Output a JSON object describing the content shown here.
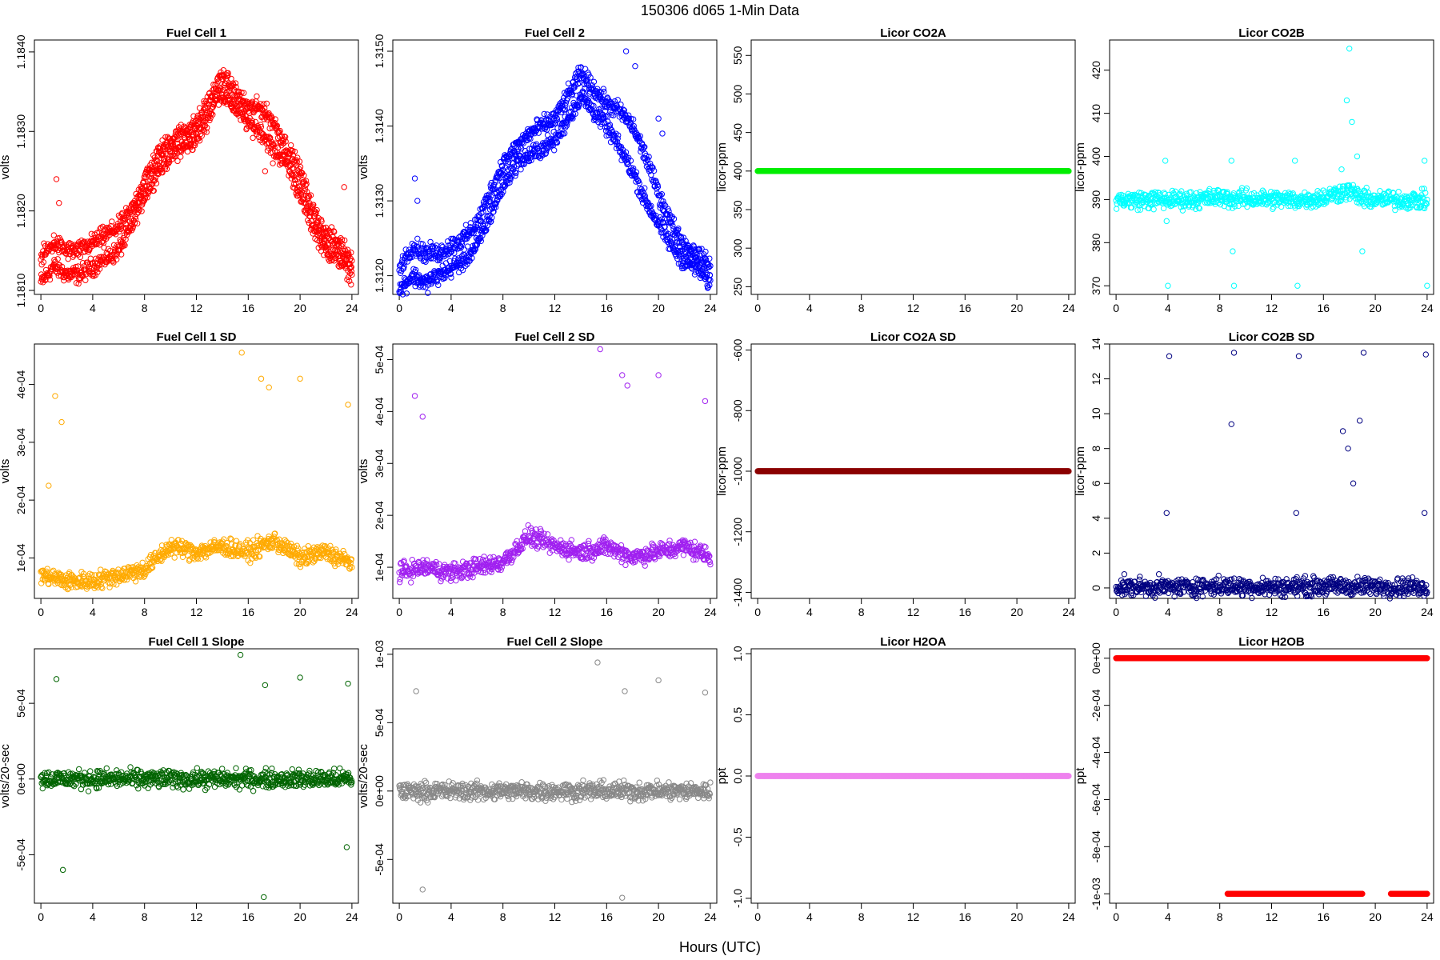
{
  "figure": {
    "title": "150306   d065   1-Min Data",
    "xlabel": "Hours (UTC)"
  },
  "chart_data": [
    {
      "type": "scatter",
      "title": "Fuel Cell 1",
      "ylabel": "volts",
      "color": "#ff0000",
      "xlim": [
        -0.5,
        24.5
      ],
      "ylim": [
        1.18095,
        1.18415
      ],
      "xticks": [
        0,
        4,
        8,
        12,
        16,
        20,
        24
      ],
      "yticks": [
        1.181,
        1.182,
        1.183,
        1.184
      ],
      "ytick_labels": [
        "1.1810",
        "1.1820",
        "1.1830",
        "1.1840"
      ],
      "series": [
        {
          "x": [
            0,
            1,
            2,
            3,
            4,
            5,
            6,
            7,
            8,
            9,
            10,
            11,
            12,
            13,
            13.8,
            15,
            16,
            17,
            17.8,
            19,
            20,
            21,
            22,
            23,
            24
          ],
          "y": [
            1.1811,
            1.1813,
            1.1812,
            1.1812,
            1.1813,
            1.1814,
            1.1815,
            1.1818,
            1.1822,
            1.1825,
            1.1827,
            1.1828,
            1.1829,
            1.1832,
            1.1835,
            1.1833,
            1.1831,
            1.183,
            1.1828,
            1.1826,
            1.1822,
            1.1818,
            1.1815,
            1.1814,
            1.1812
          ]
        },
        {
          "x": [
            0,
            1,
            2,
            3,
            4,
            5,
            6,
            7,
            8,
            9,
            10,
            11,
            12,
            13,
            14,
            15,
            16,
            17,
            18,
            19,
            20,
            21,
            22,
            23,
            24
          ],
          "y": [
            1.1814,
            1.1816,
            1.1815,
            1.1815,
            1.1816,
            1.1817,
            1.1818,
            1.182,
            1.1824,
            1.1827,
            1.1829,
            1.183,
            1.1831,
            1.1834,
            1.1837,
            1.1835,
            1.1833,
            1.1833,
            1.1831,
            1.1828,
            1.1825,
            1.182,
            1.1817,
            1.1816,
            1.1814
          ]
        },
        {
          "x": [
            1.2,
            1.4,
            17.3,
            17.9,
            19.8,
            20.1,
            23.4
          ],
          "y": [
            1.1824,
            1.1821,
            1.1825,
            1.1826,
            1.1824,
            1.1822,
            1.1823
          ]
        }
      ]
    },
    {
      "type": "scatter",
      "title": "Fuel Cell 2",
      "ylabel": "volts",
      "color": "#0000ff",
      "xlim": [
        -0.5,
        24.5
      ],
      "ylim": [
        1.31175,
        1.31515
      ],
      "xticks": [
        0,
        4,
        8,
        12,
        16,
        20,
        24
      ],
      "yticks": [
        1.312,
        1.313,
        1.314,
        1.315
      ],
      "ytick_labels": [
        "1.3120",
        "1.3130",
        "1.3140",
        "1.3150"
      ],
      "series": [
        {
          "x": [
            0,
            1,
            2,
            3,
            4,
            5,
            6,
            7,
            8,
            9,
            10,
            11,
            12,
            13,
            14,
            15,
            16,
            17,
            18,
            19,
            20,
            21,
            22,
            23,
            24
          ],
          "y": [
            1.3118,
            1.312,
            1.3119,
            1.312,
            1.3121,
            1.3122,
            1.3124,
            1.3128,
            1.3132,
            1.3135,
            1.3136,
            1.3137,
            1.3138,
            1.3141,
            1.3144,
            1.3142,
            1.314,
            1.3137,
            1.3134,
            1.313,
            1.3127,
            1.3124,
            1.3122,
            1.3121,
            1.3119
          ]
        },
        {
          "x": [
            0,
            1,
            2,
            3,
            4,
            5,
            6,
            7,
            8,
            9,
            10,
            11,
            12,
            13,
            14,
            15,
            16,
            17,
            18,
            19,
            20,
            21,
            22,
            23,
            24
          ],
          "y": [
            1.3121,
            1.3124,
            1.3123,
            1.3123,
            1.3124,
            1.3125,
            1.3127,
            1.3131,
            1.3135,
            1.3137,
            1.3139,
            1.314,
            1.3141,
            1.3144,
            1.3147,
            1.3145,
            1.3143,
            1.3142,
            1.314,
            1.3136,
            1.3131,
            1.3127,
            1.3124,
            1.3123,
            1.3121
          ]
        },
        {
          "x": [
            1.2,
            1.4,
            17.5,
            18.2,
            20,
            20.3
          ],
          "y": [
            1.3133,
            1.313,
            1.315,
            1.3148,
            1.3141,
            1.3139
          ]
        }
      ]
    },
    {
      "type": "scatter",
      "title": "Licor CO2A",
      "ylabel": "licor-ppm",
      "color": "#00ee00",
      "xlim": [
        -0.5,
        24.5
      ],
      "ylim": [
        240,
        570
      ],
      "xticks": [
        0,
        4,
        8,
        12,
        16,
        20,
        24
      ],
      "yticks": [
        250,
        300,
        350,
        400,
        450,
        500,
        550
      ],
      "ytick_labels": [
        "250",
        "300",
        "350",
        "400",
        "450",
        "500",
        "550"
      ],
      "series": [
        {
          "x": [
            0,
            24
          ],
          "y": [
            400,
            400
          ]
        }
      ]
    },
    {
      "type": "scatter",
      "title": "Licor CO2B",
      "ylabel": "licor-ppm",
      "color": "#00ffff",
      "xlim": [
        -0.5,
        24.5
      ],
      "ylim": [
        368,
        427
      ],
      "xticks": [
        0,
        4,
        8,
        12,
        16,
        20,
        24
      ],
      "yticks": [
        370,
        380,
        390,
        400,
        410,
        420
      ],
      "ytick_labels": [
        "370",
        "380",
        "390",
        "400",
        "410",
        "420"
      ],
      "series": [
        {
          "x": [
            0,
            2,
            4,
            6,
            8,
            9,
            10,
            12,
            14,
            16,
            17,
            18,
            19,
            20,
            22,
            24
          ],
          "y": [
            389.9,
            389.9,
            389.9,
            390.0,
            390.5,
            390.1,
            390.2,
            390.1,
            389.9,
            390.4,
            391.5,
            392.0,
            390.2,
            390.0,
            389.9,
            389.8
          ]
        },
        {
          "x": [
            3.8,
            3.9,
            4,
            8.9,
            9,
            9.1,
            13.8,
            14,
            17.4,
            17.8,
            18,
            18.2,
            18.6,
            19,
            23.8,
            24
          ],
          "y": [
            399,
            385,
            370,
            399,
            378,
            370,
            399,
            370,
            397,
            413,
            425,
            408,
            400,
            378,
            399,
            370
          ]
        }
      ]
    },
    {
      "type": "scatter",
      "title": "Fuel Cell 1 SD",
      "ylabel": "volts",
      "color": "#ffaa00",
      "xlim": [
        -0.5,
        24.5
      ],
      "ylim": [
        3e-05,
        0.00047
      ],
      "xticks": [
        0,
        4,
        8,
        12,
        16,
        20,
        24
      ],
      "yticks": [
        0.0001,
        0.0002,
        0.0003,
        0.0004
      ],
      "ytick_labels": [
        "1e-04",
        "2e-04",
        "3e-04",
        "4e-04"
      ],
      "series": [
        {
          "x": [
            0,
            2,
            4,
            6,
            8,
            10,
            12,
            14,
            16,
            18,
            20,
            22,
            24
          ],
          "y": [
            7e-05,
            6e-05,
            6e-05,
            7e-05,
            8e-05,
            0.00012,
            0.00011,
            0.00012,
            0.00011,
            0.00013,
            0.0001,
            0.00011,
            9e-05
          ]
        },
        {
          "x": [
            0.6,
            1.1,
            1.6,
            15.5,
            17,
            17.6,
            20,
            23.7
          ],
          "y": [
            0.000225,
            0.00038,
            0.000335,
            0.000455,
            0.00041,
            0.000395,
            0.00041,
            0.000365
          ]
        }
      ]
    },
    {
      "type": "scatter",
      "title": "Fuel Cell 2 SD",
      "ylabel": "volts",
      "color": "#a020f0",
      "xlim": [
        -0.5,
        24.5
      ],
      "ylim": [
        4e-05,
        0.00053
      ],
      "xticks": [
        0,
        4,
        8,
        12,
        16,
        20,
        24
      ],
      "yticks": [
        0.0001,
        0.0002,
        0.0003,
        0.0004,
        0.0005
      ],
      "ytick_labels": [
        "1e-04",
        "2e-04",
        "3e-04",
        "4e-04",
        "5e-04"
      ],
      "series": [
        {
          "x": [
            0,
            2,
            4,
            6,
            8,
            10,
            12,
            14,
            16,
            18,
            20,
            22,
            24
          ],
          "y": [
            9e-05,
            0.0001,
            9e-05,
            0.0001,
            0.00011,
            0.00016,
            0.00014,
            0.00013,
            0.00014,
            0.00012,
            0.00013,
            0.00014,
            0.00012
          ]
        },
        {
          "x": [
            1.2,
            1.8,
            15.5,
            17.2,
            17.6,
            20,
            23.6
          ],
          "y": [
            0.00043,
            0.00039,
            0.00052,
            0.00047,
            0.00045,
            0.00047,
            0.00042
          ]
        }
      ]
    },
    {
      "type": "scatter",
      "title": "Licor CO2A SD",
      "ylabel": "licor-ppm",
      "color": "#8b0000",
      "xlim": [
        -0.5,
        24.5
      ],
      "ylim": [
        -1420,
        -580
      ],
      "xticks": [
        0,
        4,
        8,
        12,
        16,
        20,
        24
      ],
      "yticks": [
        -1400,
        -1200,
        -1000,
        -800,
        -600
      ],
      "ytick_labels": [
        "-1400",
        "-1200",
        "-1000",
        "-800",
        "-600"
      ],
      "series": [
        {
          "x": [
            0,
            24
          ],
          "y": [
            -1000,
            -1000
          ]
        }
      ]
    },
    {
      "type": "scatter",
      "title": "Licor CO2B SD",
      "ylabel": "licor-ppm",
      "color": "#000080",
      "xlim": [
        -0.5,
        24.5
      ],
      "ylim": [
        -0.6,
        14
      ],
      "xticks": [
        0,
        4,
        8,
        12,
        16,
        20,
        24
      ],
      "yticks": [
        0,
        2,
        4,
        6,
        8,
        10,
        12,
        14
      ],
      "ytick_labels": [
        "0",
        "2",
        "4",
        "6",
        "8",
        "10",
        "12",
        "14"
      ],
      "series": [
        {
          "x": [
            0,
            4,
            8,
            12,
            16,
            24
          ],
          "y": [
            0.05,
            0.05,
            0.1,
            0.05,
            0.1,
            0.05
          ]
        },
        {
          "x": [
            3.9,
            4.1,
            8.9,
            9.1,
            13.9,
            14.1,
            17.5,
            17.9,
            18.3,
            18.8,
            19.1,
            23.8,
            23.9
          ],
          "y": [
            4.3,
            13.3,
            9.4,
            13.5,
            4.3,
            13.3,
            9.0,
            8.0,
            6.0,
            9.6,
            13.5,
            4.3,
            13.4
          ]
        }
      ]
    },
    {
      "type": "scatter",
      "title": "Fuel Cell 1 Slope",
      "ylabel": "volts/20-sec",
      "color": "#006400",
      "xlim": [
        -0.5,
        24.5
      ],
      "ylim": [
        -0.00082,
        0.00086
      ],
      "xticks": [
        0,
        4,
        8,
        12,
        16,
        20,
        24
      ],
      "yticks": [
        -0.0005,
        0,
        0.0005
      ],
      "ytick_labels": [
        "-5e-04",
        "0e+00",
        "5e-04"
      ],
      "series": [
        {
          "x": [
            0,
            4,
            8,
            12,
            16,
            20,
            24
          ],
          "y": [
            0,
            0,
            0,
            0,
            0,
            0,
            0
          ]
        },
        {
          "x": [
            1.2,
            1.7,
            15.4,
            17.3,
            20,
            23.7,
            17.2,
            23.6
          ],
          "y": [
            0.00066,
            -0.0006,
            0.00082,
            0.00062,
            0.00067,
            0.00063,
            -0.00078,
            -0.00045
          ]
        }
      ]
    },
    {
      "type": "scatter",
      "title": "Fuel Cell 2 Slope",
      "ylabel": "volts/20-sec",
      "color": "#888888",
      "xlim": [
        -0.5,
        24.5
      ],
      "ylim": [
        -0.00082,
        0.00104
      ],
      "xticks": [
        0,
        4,
        8,
        12,
        16,
        20,
        24
      ],
      "yticks": [
        -0.0005,
        0,
        0.0005,
        0.001
      ],
      "ytick_labels": [
        "-5e-04",
        "0e+00",
        "5e-04",
        "1e-03"
      ],
      "series": [
        {
          "x": [
            0,
            4,
            8,
            12,
            16,
            20,
            24
          ],
          "y": [
            0,
            0,
            0,
            0,
            0,
            0,
            0
          ]
        },
        {
          "x": [
            1.3,
            1.8,
            15.3,
            17.4,
            20,
            23.6,
            17.2
          ],
          "y": [
            0.00073,
            -0.00072,
            0.00094,
            0.00073,
            0.00081,
            0.00072,
            -0.00078
          ]
        }
      ]
    },
    {
      "type": "scatter",
      "title": "Licor H2OA",
      "ylabel": "ppt",
      "color": "#ee82ee",
      "xlim": [
        -0.5,
        24.5
      ],
      "ylim": [
        -1.04,
        1.04
      ],
      "xticks": [
        0,
        4,
        8,
        12,
        16,
        20,
        24
      ],
      "yticks": [
        -1,
        -0.5,
        0,
        0.5,
        1
      ],
      "ytick_labels": [
        "-1.0",
        "-0.5",
        "0.0",
        "0.5",
        "1.0"
      ],
      "series": [
        {
          "x": [
            0,
            24
          ],
          "y": [
            0,
            0
          ]
        }
      ]
    },
    {
      "type": "scatter",
      "title": "Licor H2OB",
      "ylabel": "ppt",
      "color": "#ff0000",
      "xlim": [
        -0.5,
        24.5
      ],
      "ylim": [
        -0.00104,
        4e-05
      ],
      "xticks": [
        0,
        4,
        8,
        12,
        16,
        20,
        24
      ],
      "yticks": [
        -0.001,
        -0.0008,
        -0.0006,
        -0.0004,
        -0.0002,
        0
      ],
      "ytick_labels": [
        "-1e-03",
        "-8e-04",
        "-6e-04",
        "-4e-04",
        "-2e-04",
        "0e+00"
      ],
      "series": [
        {
          "x": [
            0,
            24
          ],
          "y": [
            0,
            0
          ]
        },
        {
          "x": [
            8.6,
            19
          ],
          "y": [
            -0.001,
            -0.001
          ]
        },
        {
          "x": [
            21.2,
            24
          ],
          "y": [
            -0.001,
            -0.001
          ]
        }
      ]
    }
  ]
}
